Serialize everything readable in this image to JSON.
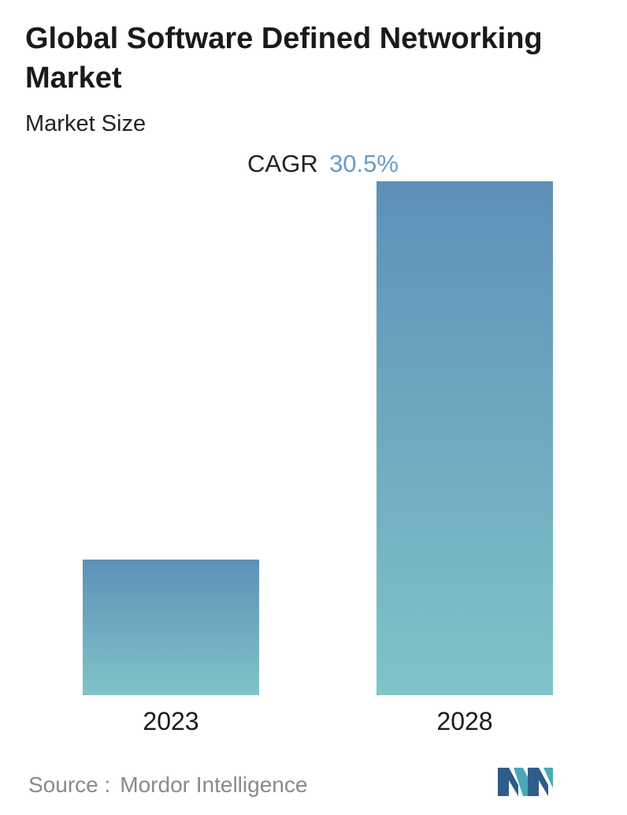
{
  "header": {
    "title": "Global Software Defined Networking Market",
    "subtitle": "Market Size"
  },
  "chart_data": {
    "type": "bar",
    "categories": [
      "2023",
      "2028"
    ],
    "values": [
      1,
      3.79
    ],
    "cagr_label": "CAGR",
    "cagr_value": "30.5%",
    "colors": {
      "bar_top": "#5e90b8",
      "bar_bottom": "#7fc4c8",
      "cagr_value": "#6a9bc4"
    },
    "grid": false,
    "legend": "none"
  },
  "footer": {
    "source_label": "Source :",
    "source_name": "Mordor Intelligence",
    "logo_icon": "mordor-intelligence-logo-icon"
  }
}
